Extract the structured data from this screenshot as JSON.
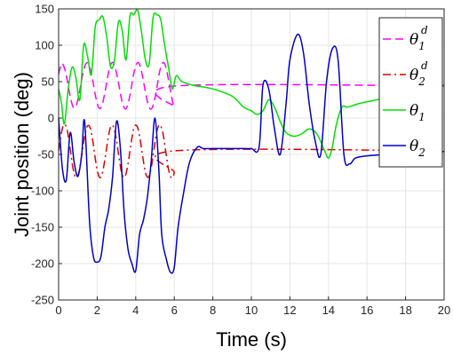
{
  "chart_data": {
    "type": "line",
    "xlabel": "Time (s)",
    "ylabel": "Joint position (deg)",
    "xlim": [
      0,
      20
    ],
    "ylim": [
      -250,
      150
    ],
    "xticks": [
      0,
      2,
      4,
      6,
      8,
      10,
      12,
      14,
      16,
      18,
      20
    ],
    "yticks": [
      -250,
      -200,
      -150,
      -100,
      -50,
      0,
      50,
      100,
      150
    ],
    "grid": true,
    "legend_position": "top-right",
    "series": [
      {
        "name": "θ1d",
        "legend_base": "θ",
        "legend_sub": "1",
        "legend_sup": "d",
        "color": "#ff00ff",
        "dash": "9,5",
        "x": [
          0,
          0.15,
          0.3,
          0.45,
          0.6,
          0.75,
          0.9,
          1.05,
          1.2,
          1.35,
          1.5,
          1.65,
          1.8,
          1.95,
          2.1,
          2.25,
          2.4,
          2.55,
          2.7,
          2.85,
          3.0,
          3.15,
          3.3,
          3.45,
          3.6,
          3.75,
          3.9,
          4.05,
          4.2,
          4.35,
          4.5,
          4.65,
          4.8,
          4.95,
          5.1,
          5.25,
          5.4,
          5.55,
          5.7,
          5.85,
          6.0,
          6.05,
          20
        ],
        "y": [
          60.0,
          74.7,
          68.9,
          51.5,
          29.9,
          15.2,
          16.4,
          31.7,
          53.1,
          70.6,
          76.0,
          66.5,
          47.0,
          25.9,
          13.5,
          17.4,
          35.1,
          57.1,
          73.4,
          75.4,
          62.3,
          41.7,
          21.9,
          12.4,
          19.3,
          38.9,
          61.2,
          74.9,
          73.8,
          57.7,
          36.2,
          18.3,
          12.3,
          21.6,
          42.7,
          64.7,
          75.8,
          71.6,
          52.4,
          31.0,
          16.1,
          44,
          44
        ]
      },
      {
        "name": "θ2d",
        "legend_base": "θ",
        "legend_sub": "2",
        "legend_sup": "d",
        "color": "#e00000",
        "dash": "9,4,2,4",
        "x": [
          0,
          0.15,
          0.3,
          0.45,
          0.6,
          0.75,
          0.9,
          1.05,
          1.2,
          1.35,
          1.5,
          1.65,
          1.8,
          1.95,
          2.1,
          2.25,
          2.4,
          2.55,
          2.7,
          2.85,
          3.0,
          3.15,
          3.3,
          3.45,
          3.6,
          3.75,
          3.9,
          4.05,
          4.2,
          4.35,
          4.5,
          4.65,
          4.8,
          4.95,
          5.1,
          5.25,
          5.4,
          5.55,
          5.7,
          5.85,
          6.0,
          6.05,
          20
        ],
        "y": [
          -45.0,
          -19.5,
          -8.6,
          -17.4,
          -42.8,
          -69.7,
          -82.2,
          -74.7,
          -50.5,
          -24.8,
          -10.8,
          -14.5,
          -36.2,
          -63.9,
          -80.8,
          -77.8,
          -56.9,
          -30.5,
          -12.0,
          -12.2,
          -30.2,
          -57.6,
          -78.0,
          -80.1,
          -63.1,
          -36.4,
          -14.1,
          -10.4,
          -24.6,
          -50.8,
          -74.5,
          -81.3,
          -68.8,
          -42.6,
          -17.7,
          -9.3,
          -19.6,
          -44.1,
          -70.2,
          -82.1,
          -74.4,
          -45,
          -45
        ]
      },
      {
        "name": "θ1",
        "legend_base": "θ",
        "legend_sub": "1",
        "legend_sup": "",
        "color": "#00e000",
        "dash": "",
        "x": [
          0,
          0.15,
          0.3,
          0.5,
          0.7,
          0.9,
          1.1,
          1.3,
          1.5,
          1.7,
          1.9,
          2.1,
          2.3,
          2.5,
          2.7,
          2.9,
          3.1,
          3.3,
          3.5,
          3.7,
          3.9,
          4.1,
          4.3,
          4.5,
          4.7,
          4.9,
          5.1,
          5.3,
          5.5,
          5.7,
          5.9,
          6.1,
          6.4,
          7.0,
          8.0,
          9.0,
          9.6,
          10.0,
          10.3,
          10.6,
          10.9,
          11.2,
          11.5,
          11.8,
          12.2,
          12.6,
          13.0,
          13.4,
          13.8,
          14.0,
          14.2,
          14.4,
          14.7,
          15.0,
          15.6,
          16.5,
          17.5,
          18.5,
          19.5,
          20.0
        ],
        "y": [
          40,
          20,
          -8,
          40,
          70,
          55,
          25,
          100,
          85,
          60,
          125,
          135,
          139,
          110,
          70,
          80,
          132,
          120,
          80,
          140,
          142,
          148,
          118,
          80,
          75,
          138,
          142,
          135,
          100,
          70,
          40,
          58,
          50,
          45,
          40,
          30,
          15,
          10,
          5,
          10,
          25,
          15,
          -5,
          -20,
          -25,
          -22,
          -15,
          -22,
          -45,
          -55,
          -40,
          -10,
          15,
          15,
          20,
          25,
          30,
          35,
          42,
          46
        ]
      },
      {
        "name": "θ2",
        "legend_base": "θ",
        "legend_sub": "2",
        "legend_sup": "",
        "color": "#0000cc",
        "dash": "",
        "x": [
          0,
          0.2,
          0.4,
          0.6,
          0.8,
          1.0,
          1.2,
          1.35,
          1.6,
          1.8,
          2.0,
          2.2,
          2.4,
          2.6,
          2.8,
          3.0,
          3.2,
          3.4,
          3.6,
          3.8,
          4.0,
          4.2,
          4.4,
          4.6,
          4.8,
          5.0,
          5.2,
          5.35,
          5.6,
          5.8,
          6.0,
          6.2,
          6.5,
          6.8,
          7.2,
          7.5,
          8.0,
          8.5,
          9.0,
          9.6,
          10.0,
          10.4,
          10.6,
          10.9,
          11.2,
          11.5,
          11.8,
          12.0,
          12.4,
          12.7,
          13.0,
          13.3,
          13.6,
          13.9,
          14.2,
          14.5,
          14.8,
          15.1,
          15.4,
          16.0,
          17.0,
          18.0,
          19.0,
          20.0
        ],
        "y": [
          0,
          -70,
          -85,
          -20,
          -60,
          -80,
          -50,
          -5,
          -140,
          -190,
          -198,
          -190,
          -150,
          -125,
          -80,
          -5,
          -40,
          -130,
          -180,
          -200,
          -210,
          -160,
          -140,
          -110,
          -60,
          0,
          -70,
          -160,
          -195,
          -212,
          -205,
          -150,
          -100,
          -60,
          -40,
          -42,
          -42,
          -42,
          -42,
          -42,
          -42,
          -40,
          45,
          40,
          -15,
          -50,
          20,
          80,
          115,
          90,
          20,
          -30,
          -50,
          50,
          95,
          80,
          -50,
          -63,
          -55,
          -52,
          -50,
          -48,
          -47,
          -46
        ]
      }
    ]
  }
}
